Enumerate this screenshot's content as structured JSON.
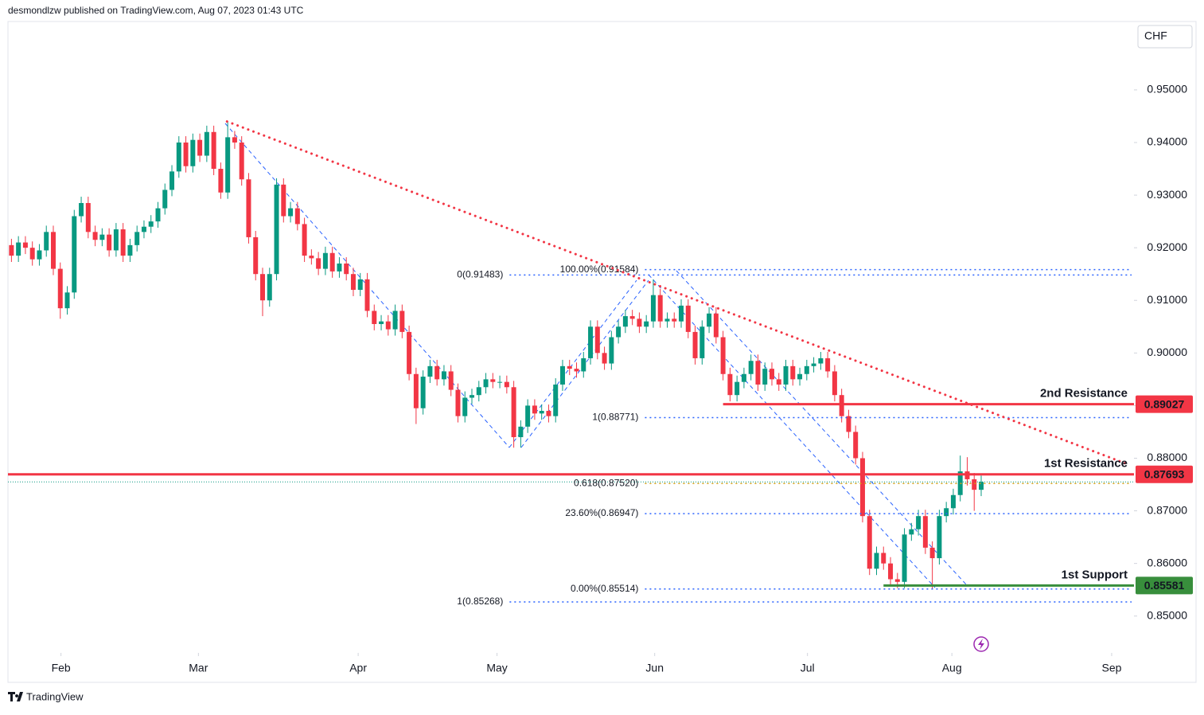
{
  "header": {
    "publisher": "desmondlzw published on TradingView.com, Aug 07, 2023 01:43 UTC",
    "currency": "CHF",
    "brand": "TradingView"
  },
  "chart_data": {
    "type": "candlestick",
    "up_color": "#089981",
    "down_color": "#f23645",
    "xlim": [
      -0.5,
      160.9
    ],
    "ylim": [
      0.843,
      0.963
    ],
    "xticks": [
      {
        "value": 7.1,
        "label": "Feb"
      },
      {
        "value": 26.8,
        "label": "Mar"
      },
      {
        "value": 49.7,
        "label": "Apr"
      },
      {
        "value": 69.6,
        "label": "May"
      },
      {
        "value": 92.2,
        "label": "Jun"
      },
      {
        "value": 114.1,
        "label": "Jul"
      },
      {
        "value": 134.8,
        "label": "Aug"
      },
      {
        "value": 157.7,
        "label": "Sep"
      }
    ],
    "yticks": [
      {
        "value": 0.85,
        "label": "0.85000"
      },
      {
        "value": 0.86,
        "label": "0.86000"
      },
      {
        "value": 0.87,
        "label": "0.87000"
      },
      {
        "value": 0.88,
        "label": "0.88000"
      },
      {
        "value": 0.89,
        "label": "0.89000"
      },
      {
        "value": 0.9,
        "label": "0.90000"
      },
      {
        "value": 0.91,
        "label": "0.91000"
      },
      {
        "value": 0.92,
        "label": "0.92000"
      },
      {
        "value": 0.93,
        "label": "0.93000"
      },
      {
        "value": 0.94,
        "label": "0.94000"
      },
      {
        "value": 0.95,
        "label": "0.95000"
      }
    ],
    "open": [
      0.9205,
      0.9185,
      0.921,
      0.92,
      0.9178,
      0.9195,
      0.923,
      0.916,
      0.9085,
      0.9115,
      0.926,
      0.9285,
      0.923,
      0.9215,
      0.9225,
      0.9195,
      0.9235,
      0.9185,
      0.9205,
      0.923,
      0.924,
      0.925,
      0.9275,
      0.931,
      0.9345,
      0.94,
      0.9355,
      0.9405,
      0.9375,
      0.942,
      0.935,
      0.9305,
      0.941,
      0.94,
      0.933,
      0.922,
      0.915,
      0.91,
      0.915,
      0.932,
      0.926,
      0.9275,
      0.9245,
      0.9185,
      0.918,
      0.916,
      0.919,
      0.9155,
      0.917,
      0.915,
      0.912,
      0.914,
      0.908,
      0.9055,
      0.906,
      0.9045,
      0.908,
      0.904,
      0.896,
      0.8895,
      0.8955,
      0.8975,
      0.895,
      0.8965,
      0.893,
      0.888,
      0.8915,
      0.892,
      0.8935,
      0.895,
      0.8945,
      0.8945,
      0.8935,
      0.884,
      0.886,
      0.89,
      0.8885,
      0.889,
      0.888,
      0.894,
      0.8975,
      0.897,
      0.8965,
      0.899,
      0.905,
      0.9,
      0.898,
      0.903,
      0.905,
      0.907,
      0.9065,
      0.905,
      0.906,
      0.911,
      0.906,
      0.9065,
      0.906,
      0.909,
      0.904,
      0.899,
      0.905,
      0.9075,
      0.903,
      0.896,
      0.892,
      0.8945,
      0.896,
      0.8985,
      0.894,
      0.897,
      0.895,
      0.894,
      0.8975,
      0.895,
      0.896,
      0.8975,
      0.898,
      0.899,
      0.8965,
      0.892,
      0.888,
      0.885,
      0.88,
      0.869,
      0.859,
      0.862,
      0.86,
      0.857,
      0.8565,
      0.8655,
      0.8665,
      0.869,
      0.863,
      0.861,
      0.869,
      0.8705,
      0.873,
      0.8775,
      0.876,
      0.874
    ],
    "high": [
      0.9217,
      0.9222,
      0.9222,
      0.9212,
      0.9207,
      0.9242,
      0.9242,
      0.9172,
      0.9127,
      0.9272,
      0.9297,
      0.9297,
      0.9242,
      0.9237,
      0.9237,
      0.9247,
      0.9247,
      0.9217,
      0.9242,
      0.9252,
      0.9262,
      0.9287,
      0.9322,
      0.9357,
      0.9412,
      0.9412,
      0.9417,
      0.9417,
      0.9432,
      0.9432,
      0.9362,
      0.944,
      0.9422,
      0.9412,
      0.9342,
      0.9232,
      0.9162,
      0.9162,
      0.9332,
      0.9332,
      0.9287,
      0.9287,
      0.9257,
      0.9197,
      0.9192,
      0.9202,
      0.9202,
      0.9182,
      0.9182,
      0.9162,
      0.9152,
      0.9152,
      0.9092,
      0.9072,
      0.9072,
      0.9092,
      0.9092,
      0.9052,
      0.8972,
      0.8967,
      0.8987,
      0.8987,
      0.8977,
      0.8977,
      0.8942,
      0.8927,
      0.8932,
      0.8947,
      0.8962,
      0.8962,
      0.8957,
      0.8957,
      0.8947,
      0.8872,
      0.8912,
      0.8912,
      0.8902,
      0.8902,
      0.8952,
      0.8987,
      0.8987,
      0.8982,
      0.9002,
      0.9062,
      0.9062,
      0.9012,
      0.9042,
      0.9062,
      0.9082,
      0.9082,
      0.9077,
      0.9072,
      0.914,
      0.9122,
      0.9077,
      0.9077,
      0.9102,
      0.9102,
      0.9052,
      0.9062,
      0.9087,
      0.9087,
      0.9042,
      0.8972,
      0.8957,
      0.8972,
      0.8997,
      0.8997,
      0.8982,
      0.8982,
      0.8962,
      0.8987,
      0.8987,
      0.8972,
      0.8987,
      0.8992,
      0.9002,
      0.9002,
      0.8977,
      0.8932,
      0.8892,
      0.8862,
      0.8812,
      0.8702,
      0.8632,
      0.8632,
      0.8612,
      0.8582,
      0.8667,
      0.8677,
      0.8702,
      0.8702,
      0.8642,
      0.8702,
      0.8717,
      0.8742,
      0.8805,
      0.8802,
      0.8772,
      0.8767
    ],
    "low": [
      0.9173,
      0.9173,
      0.9188,
      0.9166,
      0.9166,
      0.9183,
      0.9148,
      0.9065,
      0.9073,
      0.9103,
      0.9248,
      0.9218,
      0.9203,
      0.9203,
      0.9183,
      0.9183,
      0.9173,
      0.9173,
      0.9193,
      0.9218,
      0.9228,
      0.9238,
      0.9263,
      0.9298,
      0.9333,
      0.9343,
      0.9343,
      0.9363,
      0.9363,
      0.9338,
      0.9293,
      0.9293,
      0.9388,
      0.9318,
      0.9208,
      0.9138,
      0.907,
      0.9088,
      0.9138,
      0.9248,
      0.9248,
      0.9233,
      0.9173,
      0.9168,
      0.9148,
      0.9148,
      0.9143,
      0.9143,
      0.9138,
      0.9108,
      0.9108,
      0.9068,
      0.9043,
      0.9043,
      0.9033,
      0.9033,
      0.9028,
      0.8948,
      0.8865,
      0.8883,
      0.8943,
      0.8938,
      0.8938,
      0.8918,
      0.8868,
      0.8868,
      0.8903,
      0.8908,
      0.8923,
      0.8933,
      0.8933,
      0.8923,
      0.882,
      0.882,
      0.8848,
      0.8873,
      0.8873,
      0.8868,
      0.8868,
      0.8928,
      0.8958,
      0.8953,
      0.8953,
      0.8978,
      0.8988,
      0.8968,
      0.8968,
      0.9018,
      0.9038,
      0.9053,
      0.9038,
      0.9038,
      0.9048,
      0.9048,
      0.9048,
      0.9048,
      0.9048,
      0.9028,
      0.8978,
      0.8978,
      0.9038,
      0.9018,
      0.8948,
      0.8908,
      0.8908,
      0.8933,
      0.8948,
      0.8928,
      0.8928,
      0.8938,
      0.8928,
      0.8928,
      0.8938,
      0.8938,
      0.8948,
      0.8963,
      0.8968,
      0.8953,
      0.8908,
      0.8868,
      0.8838,
      0.8788,
      0.8678,
      0.8578,
      0.8578,
      0.8588,
      0.8558,
      0.8553,
      0.8553,
      0.8643,
      0.8653,
      0.8618,
      0.8551,
      0.8598,
      0.8678,
      0.8693,
      0.8718,
      0.8748,
      0.87,
      0.8728
    ],
    "close": [
      0.9185,
      0.921,
      0.92,
      0.9178,
      0.9195,
      0.923,
      0.916,
      0.9085,
      0.9115,
      0.926,
      0.9285,
      0.923,
      0.9215,
      0.9225,
      0.9195,
      0.9235,
      0.9185,
      0.9205,
      0.923,
      0.924,
      0.925,
      0.9275,
      0.931,
      0.9345,
      0.94,
      0.9355,
      0.9405,
      0.9375,
      0.942,
      0.935,
      0.9305,
      0.941,
      0.94,
      0.933,
      0.922,
      0.915,
      0.91,
      0.915,
      0.932,
      0.926,
      0.9275,
      0.9245,
      0.9185,
      0.918,
      0.916,
      0.919,
      0.9155,
      0.917,
      0.915,
      0.912,
      0.914,
      0.908,
      0.9055,
      0.906,
      0.9045,
      0.908,
      0.904,
      0.896,
      0.8895,
      0.8955,
      0.8975,
      0.895,
      0.8965,
      0.893,
      0.888,
      0.8915,
      0.892,
      0.8935,
      0.895,
      0.8945,
      0.8945,
      0.8935,
      0.884,
      0.886,
      0.89,
      0.8885,
      0.889,
      0.888,
      0.894,
      0.8975,
      0.897,
      0.8965,
      0.899,
      0.905,
      0.9,
      0.898,
      0.903,
      0.905,
      0.907,
      0.9065,
      0.905,
      0.906,
      0.911,
      0.906,
      0.9065,
      0.906,
      0.909,
      0.904,
      0.899,
      0.905,
      0.9075,
      0.903,
      0.896,
      0.892,
      0.8945,
      0.896,
      0.8985,
      0.894,
      0.897,
      0.895,
      0.894,
      0.8975,
      0.895,
      0.896,
      0.8975,
      0.898,
      0.899,
      0.8965,
      0.892,
      0.888,
      0.885,
      0.88,
      0.869,
      0.859,
      0.862,
      0.86,
      0.857,
      0.8565,
      0.8655,
      0.8665,
      0.869,
      0.863,
      0.861,
      0.869,
      0.8705,
      0.873,
      0.8775,
      0.876,
      0.874,
      0.8755
    ],
    "trendline": {
      "x": [
        30.9,
        160.3
      ],
      "y": [
        0.944,
        0.8787
      ],
      "color": "#f23645"
    },
    "levels": [
      {
        "name": "2nd Resistance",
        "value": 0.89027,
        "color": "#f23645",
        "x_start": 102
      },
      {
        "name": "1st Resistance",
        "value": 0.87693,
        "color": "#f23645",
        "x_start": -0.5
      },
      {
        "name": "1st Support",
        "value": 0.85581,
        "color": "#388e3c",
        "x_start": 125
      }
    ],
    "fib_levels": [
      {
        "label": "100.00%(0.91584)",
        "value": 0.91584,
        "color": "#2962ff",
        "x_start": 90.8
      },
      {
        "label": "0(0.91483)",
        "value": 0.91483,
        "color": "#2962ff",
        "x_start": 71.4
      },
      {
        "label": "1(0.88771)",
        "value": 0.88771,
        "color": "#2962ff",
        "x_start": 90.8
      },
      {
        "label": "0.618(0.87520)",
        "value": 0.8752,
        "color": "#d4a017",
        "x_start": 90.8
      },
      {
        "label": "23.60%(0.86947)",
        "value": 0.86947,
        "color": "#2962ff",
        "x_start": 90.8
      },
      {
        "label": "0.00%(0.85514)",
        "value": 0.85514,
        "color": "#2962ff",
        "x_start": 90.8
      },
      {
        "label": "1(0.85268)",
        "value": 0.85268,
        "color": "#2962ff",
        "x_start": 71.4
      }
    ]
  }
}
